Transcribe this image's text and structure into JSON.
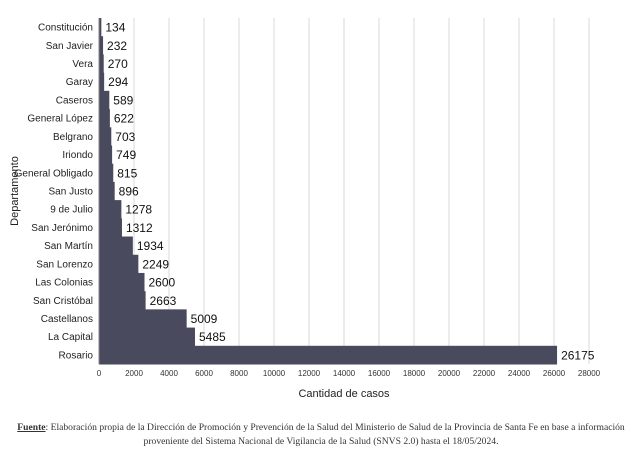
{
  "chart_data": {
    "type": "bar",
    "orientation": "horizontal",
    "categories": [
      "Constitución",
      "San Javier",
      "Vera",
      "Garay",
      "Caseros",
      "General López",
      "Belgrano",
      "Iriondo",
      "General Obligado",
      "San Justo",
      "9 de Julio",
      "San Jerónimo",
      "San Martín",
      "San Lorenzo",
      "Las Colonias",
      "San Cristóbal",
      "Castellanos",
      "La Capital",
      "Rosario"
    ],
    "values": [
      134,
      232,
      270,
      294,
      589,
      622,
      703,
      749,
      815,
      896,
      1278,
      1312,
      1934,
      2249,
      2600,
      2663,
      5009,
      5485,
      26175
    ],
    "xlabel": "Cantidad de casos",
    "ylabel": "Departamento",
    "xlim": [
      0,
      28000
    ],
    "xticks": [
      "0",
      "2000",
      "4000",
      "6000",
      "8000",
      "10000",
      "12000",
      "14000",
      "16000",
      "18000",
      "20000",
      "22000",
      "24000",
      "26000",
      "28000"
    ],
    "grid": "vertical",
    "bar_color": "#4a4a5e"
  },
  "footer": {
    "label": "Fuente",
    "text": ": Elaboración propia de la Dirección de Promoción y Prevención de la Salud del Ministerio de Salud de la Provincia de Santa Fe en base a información proveniente del Sistema Nacional de Vigilancia de la Salud (SNVS 2.0) hasta el 18/05/2024."
  }
}
